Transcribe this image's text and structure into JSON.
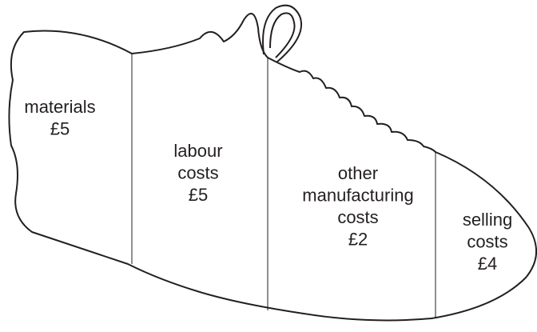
{
  "sections": [
    {
      "lines": [
        "materials",
        "£5"
      ]
    },
    {
      "lines": [
        "labour",
        "costs",
        "£5"
      ]
    },
    {
      "lines": [
        "other",
        "manufacturing",
        "costs",
        "£2"
      ]
    },
    {
      "lines": [
        "selling",
        "costs",
        "£4"
      ]
    }
  ]
}
